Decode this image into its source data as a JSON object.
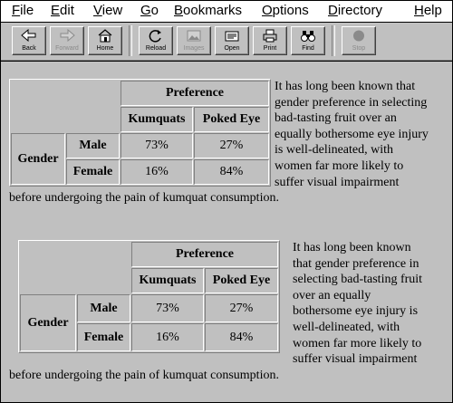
{
  "menu": {
    "file": {
      "u": "F",
      "rest": "ile"
    },
    "edit": {
      "u": "E",
      "rest": "dit"
    },
    "view": {
      "u": "V",
      "rest": "iew"
    },
    "go": {
      "u": "G",
      "rest": "o"
    },
    "bookmarks": {
      "u": "B",
      "rest": "ookmarks"
    },
    "options": {
      "u": "O",
      "rest": "ptions"
    },
    "directory": {
      "u": "D",
      "rest": "irectory"
    },
    "help": {
      "u": "H",
      "rest": "elp"
    }
  },
  "toolbar": {
    "back": "Back",
    "forward": "Forward",
    "home": "Home",
    "reload": "Reload",
    "images": "Images",
    "open": "Open",
    "print": "Print",
    "find": "Find",
    "stop": "Stop"
  },
  "table": {
    "preference_header": "Preference",
    "col1": "Kumquats",
    "col2": "Poked Eye",
    "row_group": "Gender",
    "rows": [
      {
        "label": "Male",
        "v1": "73%",
        "v2": "27%"
      },
      {
        "label": "Female",
        "v1": "16%",
        "v2": "84%"
      }
    ]
  },
  "paragraph": "It has long been known that gender preference in selecting bad-tasting fruit over an equally bothersome eye injury is well-delineated, with women far more likely to suffer visual impairment before undergoing the pain of kumquat consumption.",
  "colors": {
    "background": "#c0c0c0",
    "menubar": "#ffffff"
  }
}
